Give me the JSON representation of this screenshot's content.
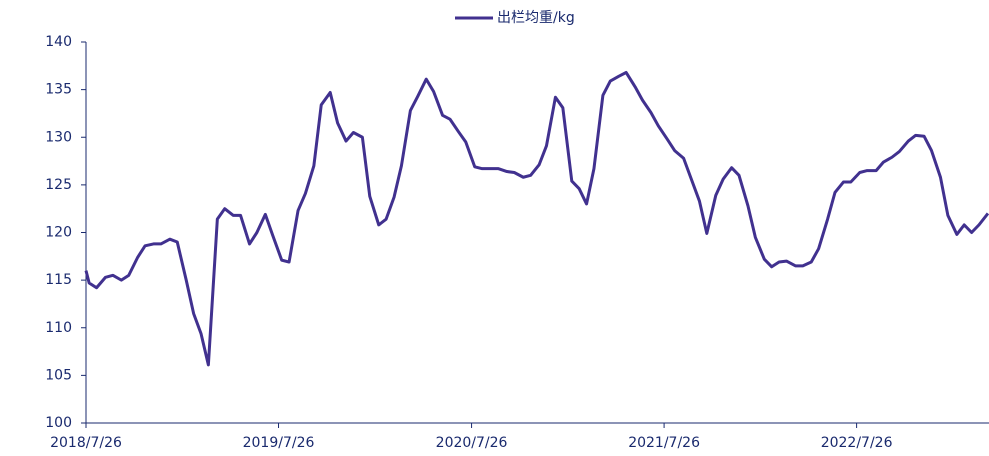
{
  "chart_data": {
    "type": "line",
    "legend": "top",
    "x": [
      "2018/7/26",
      "2018/8/1",
      "2018/8/15",
      "2018/9/1",
      "2018/9/15",
      "2018/10/1",
      "2018/10/15",
      "2018/11/1",
      "2018/11/15",
      "2018/12/1",
      "2018/12/15",
      "2019/1/1",
      "2019/1/15",
      "2019/2/1",
      "2019/2/15",
      "2019/3/1",
      "2019/3/15",
      "2019/4/1",
      "2019/4/15",
      "2019/5/1",
      "2019/5/15",
      "2019/6/1",
      "2019/6/15",
      "2019/7/1",
      "2019/7/15",
      "2019/8/1",
      "2019/8/15",
      "2019/9/1",
      "2019/9/15",
      "2019/10/1",
      "2019/10/15",
      "2019/11/1",
      "2019/11/15",
      "2019/12/1",
      "2019/12/15",
      "2020/1/1",
      "2020/1/15",
      "2020/2/1",
      "2020/2/15",
      "2020/3/1",
      "2020/3/15",
      "2020/4/1",
      "2020/4/15",
      "2020/5/1",
      "2020/5/15",
      "2020/6/1",
      "2020/6/15",
      "2020/7/1",
      "2020/7/15",
      "2020/8/1",
      "2020/8/15",
      "2020/9/1",
      "2020/9/15",
      "2020/10/1",
      "2020/10/15",
      "2020/11/1",
      "2020/11/15",
      "2020/12/1",
      "2020/12/15",
      "2021/1/1",
      "2021/1/15",
      "2021/2/1",
      "2021/2/15",
      "2021/3/1",
      "2021/3/15",
      "2021/4/1",
      "2021/4/15",
      "2021/5/1",
      "2021/5/15",
      "2021/6/1",
      "2021/6/15",
      "2021/7/1",
      "2021/7/15",
      "2021/8/1",
      "2021/8/15",
      "2021/9/1",
      "2021/9/15",
      "2021/10/1",
      "2021/10/15",
      "2021/11/1",
      "2021/11/15",
      "2021/12/1",
      "2021/12/15",
      "2022/1/1",
      "2022/1/15",
      "2022/2/1",
      "2022/2/15",
      "2022/3/1",
      "2022/3/15",
      "2022/4/1",
      "2022/4/15",
      "2022/5/1",
      "2022/5/15",
      "2022/6/1",
      "2022/6/15",
      "2022/7/1",
      "2022/7/15",
      "2022/8/1",
      "2022/8/15",
      "2022/9/1",
      "2022/9/15",
      "2022/10/1",
      "2022/10/15",
      "2022/11/1",
      "2022/11/15",
      "2022/12/1",
      "2022/12/15",
      "2023/1/1",
      "2023/1/15",
      "2023/2/1",
      "2023/2/15",
      "2023/3/1",
      "2023/3/15",
      "2023/4/1"
    ],
    "series": [
      {
        "name": "出栏均重/kg",
        "color": "#41318f",
        "values": [
          116.0,
          114.7,
          114.2,
          115.3,
          115.5,
          115.0,
          115.5,
          117.4,
          118.6,
          118.8,
          118.8,
          119.3,
          119.0,
          115.0,
          111.5,
          109.4,
          106.1,
          121.4,
          122.5,
          121.8,
          121.8,
          118.8,
          120.0,
          121.9,
          119.7,
          117.1,
          116.9,
          122.3,
          124.1,
          127.0,
          133.4,
          134.7,
          131.5,
          129.6,
          130.5,
          130.0,
          123.8,
          120.8,
          121.4,
          123.7,
          127.0,
          132.8,
          134.3,
          136.1,
          134.8,
          132.3,
          131.9,
          130.6,
          129.5,
          126.9,
          126.7,
          126.7,
          126.7,
          126.4,
          126.3,
          125.8,
          126.0,
          127.1,
          129.1,
          134.2,
          133.1,
          125.4,
          124.6,
          123.0,
          126.7,
          134.4,
          135.9,
          136.4,
          136.8,
          135.3,
          133.9,
          132.6,
          131.2,
          129.8,
          128.6,
          127.8,
          125.7,
          123.3,
          119.9,
          123.9,
          125.6,
          126.8,
          126.0,
          122.8,
          119.5,
          117.2,
          116.4,
          116.9,
          117.0,
          116.5,
          116.5,
          116.9,
          118.3,
          121.4,
          124.2,
          125.3,
          125.3,
          126.3,
          126.5,
          126.5,
          127.4,
          127.9,
          128.5,
          129.6,
          130.2,
          130.1,
          128.6,
          125.8,
          121.8,
          119.8,
          120.8,
          120.0,
          120.8,
          122.0
        ]
      }
    ],
    "xlim": [
      "2018/7/26",
      "2023/4/3"
    ],
    "xticks": [
      "2018/7/26",
      "2019/7/26",
      "2020/7/26",
      "2021/7/26",
      "2022/7/26"
    ],
    "ylim": [
      100,
      140
    ],
    "yticks": [
      100,
      105,
      110,
      115,
      120,
      125,
      130,
      135,
      140
    ],
    "grid": false
  }
}
